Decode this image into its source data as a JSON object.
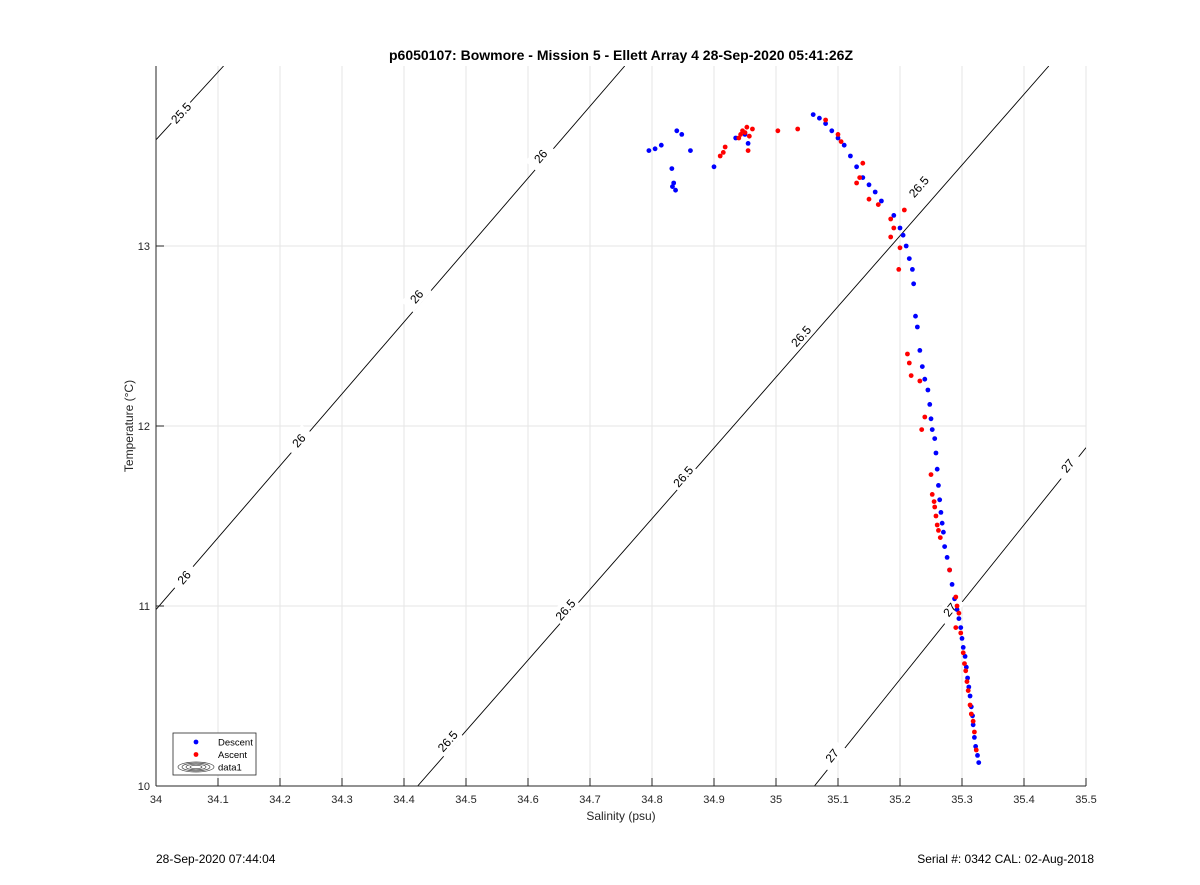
{
  "chart_data": {
    "type": "scatter",
    "title": "p6050107: Bowmore - Mission 5 - Ellett Array 4 28-Sep-2020 05:41:26Z",
    "xlabel": "Salinity (psu)",
    "ylabel": "Temperature (°C)",
    "xlim": [
      34,
      35.5
    ],
    "ylim": [
      10,
      14
    ],
    "xticks": [
      34,
      34.1,
      34.2,
      34.3,
      34.4,
      34.5,
      34.6,
      34.7,
      34.8,
      34.9,
      35,
      35.1,
      35.2,
      35.3,
      35.4,
      35.5
    ],
    "xtick_labels": [
      "34",
      "34.1",
      "34.2",
      "34.3",
      "34.4",
      "34.5",
      "34.6",
      "34.7",
      "34.8",
      "34.9",
      "35",
      "35.1",
      "35.2",
      "35.3",
      "35.4",
      "35.5"
    ],
    "yticks": [
      10,
      11,
      12,
      13
    ],
    "ytick_labels": [
      "10",
      "11",
      "12",
      "13"
    ],
    "grid": true,
    "legend": {
      "placement": "bottom-left",
      "entries": [
        "Descent",
        "Ascent",
        "data1"
      ]
    },
    "density_contours": [
      {
        "label": "25.5",
        "line": [
          [
            34,
            13.59
          ],
          [
            34.109,
            14
          ]
        ],
        "labels_at": [
          [
            34.04,
            13.74
          ]
        ]
      },
      {
        "label": "26",
        "line": [
          [
            34,
            10.98
          ],
          [
            34.756,
            14
          ]
        ],
        "labels_at": [
          [
            34.045,
            11.16
          ],
          [
            34.23,
            11.92
          ],
          [
            34.42,
            12.72
          ],
          [
            34.62,
            13.5
          ]
        ]
      },
      {
        "label": "26.5",
        "line": [
          [
            34.422,
            10
          ],
          [
            35.44,
            14
          ]
        ],
        "labels_at": [
          [
            34.47,
            10.25
          ],
          [
            34.66,
            10.98
          ],
          [
            34.85,
            11.72
          ],
          [
            35.04,
            12.5
          ],
          [
            35.23,
            13.33
          ]
        ]
      },
      {
        "label": "27",
        "line": [
          [
            35.062,
            10
          ],
          [
            35.5,
            11.88
          ]
        ],
        "labels_at": [
          [
            35.09,
            10.17
          ],
          [
            35.28,
            10.98
          ],
          [
            35.47,
            11.78
          ]
        ]
      }
    ],
    "series": [
      {
        "name": "Descent",
        "color": "#0000ff",
        "points": [
          [
            34.795,
            13.53
          ],
          [
            34.805,
            13.54
          ],
          [
            34.815,
            13.56
          ],
          [
            34.84,
            13.64
          ],
          [
            34.848,
            13.62
          ],
          [
            34.862,
            13.53
          ],
          [
            34.832,
            13.43
          ],
          [
            34.835,
            13.35
          ],
          [
            34.838,
            13.31
          ],
          [
            34.833,
            13.33
          ],
          [
            34.9,
            13.44
          ],
          [
            34.935,
            13.6
          ],
          [
            34.95,
            13.62
          ],
          [
            34.955,
            13.57
          ],
          [
            35.06,
            13.73
          ],
          [
            35.07,
            13.71
          ],
          [
            35.08,
            13.68
          ],
          [
            35.09,
            13.64
          ],
          [
            35.1,
            13.6
          ],
          [
            35.11,
            13.56
          ],
          [
            35.12,
            13.5
          ],
          [
            35.13,
            13.44
          ],
          [
            35.14,
            13.38
          ],
          [
            35.15,
            13.34
          ],
          [
            35.16,
            13.3
          ],
          [
            35.17,
            13.25
          ],
          [
            35.19,
            13.17
          ],
          [
            35.2,
            13.1
          ],
          [
            35.205,
            13.06
          ],
          [
            35.21,
            13.0
          ],
          [
            35.215,
            12.93
          ],
          [
            35.22,
            12.87
          ],
          [
            35.222,
            12.79
          ],
          [
            35.225,
            12.61
          ],
          [
            35.228,
            12.55
          ],
          [
            35.232,
            12.42
          ],
          [
            35.236,
            12.33
          ],
          [
            35.24,
            12.26
          ],
          [
            35.245,
            12.2
          ],
          [
            35.248,
            12.12
          ],
          [
            35.25,
            12.04
          ],
          [
            35.252,
            11.98
          ],
          [
            35.256,
            11.93
          ],
          [
            35.258,
            11.85
          ],
          [
            35.26,
            11.76
          ],
          [
            35.262,
            11.67
          ],
          [
            35.264,
            11.59
          ],
          [
            35.266,
            11.52
          ],
          [
            35.268,
            11.46
          ],
          [
            35.27,
            11.41
          ],
          [
            35.272,
            11.33
          ],
          [
            35.276,
            11.27
          ],
          [
            35.28,
            11.2
          ],
          [
            35.284,
            11.12
          ],
          [
            35.288,
            11.04
          ],
          [
            35.292,
            10.98
          ],
          [
            35.295,
            10.93
          ],
          [
            35.298,
            10.88
          ],
          [
            35.3,
            10.82
          ],
          [
            35.302,
            10.77
          ],
          [
            35.305,
            10.72
          ],
          [
            35.307,
            10.66
          ],
          [
            35.309,
            10.6
          ],
          [
            35.311,
            10.55
          ],
          [
            35.313,
            10.5
          ],
          [
            35.315,
            10.44
          ],
          [
            35.317,
            10.39
          ],
          [
            35.318,
            10.34
          ],
          [
            35.32,
            10.27
          ],
          [
            35.322,
            10.22
          ],
          [
            35.325,
            10.17
          ],
          [
            35.327,
            10.13
          ]
        ]
      },
      {
        "name": "Ascent",
        "color": "#ff0000",
        "points": [
          [
            34.91,
            13.5
          ],
          [
            34.915,
            13.52
          ],
          [
            34.918,
            13.55
          ],
          [
            34.94,
            13.6
          ],
          [
            34.943,
            13.62
          ],
          [
            34.946,
            13.64
          ],
          [
            34.95,
            13.63
          ],
          [
            34.953,
            13.66
          ],
          [
            34.957,
            13.61
          ],
          [
            34.962,
            13.65
          ],
          [
            34.955,
            13.53
          ],
          [
            35.003,
            13.64
          ],
          [
            35.035,
            13.65
          ],
          [
            35.08,
            13.7
          ],
          [
            35.1,
            13.62
          ],
          [
            35.105,
            13.58
          ],
          [
            35.13,
            13.35
          ],
          [
            35.135,
            13.38
          ],
          [
            35.14,
            13.46
          ],
          [
            35.15,
            13.26
          ],
          [
            35.165,
            13.23
          ],
          [
            35.185,
            13.15
          ],
          [
            35.19,
            13.1
          ],
          [
            35.185,
            13.05
          ],
          [
            35.2,
            12.99
          ],
          [
            35.198,
            12.87
          ],
          [
            35.207,
            13.2
          ],
          [
            35.212,
            12.4
          ],
          [
            35.215,
            12.35
          ],
          [
            35.218,
            12.28
          ],
          [
            35.232,
            12.25
          ],
          [
            35.24,
            12.05
          ],
          [
            35.235,
            11.98
          ],
          [
            35.25,
            11.73
          ],
          [
            35.252,
            11.62
          ],
          [
            35.255,
            11.58
          ],
          [
            35.256,
            11.55
          ],
          [
            35.258,
            11.5
          ],
          [
            35.26,
            11.45
          ],
          [
            35.262,
            11.42
          ],
          [
            35.265,
            11.38
          ],
          [
            35.28,
            11.2
          ],
          [
            35.29,
            11.05
          ],
          [
            35.292,
            11.0
          ],
          [
            35.295,
            10.96
          ],
          [
            35.29,
            10.88
          ],
          [
            35.298,
            10.85
          ],
          [
            35.302,
            10.74
          ],
          [
            35.304,
            10.68
          ],
          [
            35.306,
            10.64
          ],
          [
            35.308,
            10.58
          ],
          [
            35.31,
            10.53
          ],
          [
            35.313,
            10.45
          ],
          [
            35.315,
            10.4
          ],
          [
            35.318,
            10.36
          ],
          [
            35.32,
            10.3
          ],
          [
            35.323,
            10.2
          ]
        ]
      }
    ]
  },
  "footer": {
    "left": "28-Sep-2020 07:44:04",
    "right": "Serial #: 0342  CAL: 02-Aug-2018"
  }
}
